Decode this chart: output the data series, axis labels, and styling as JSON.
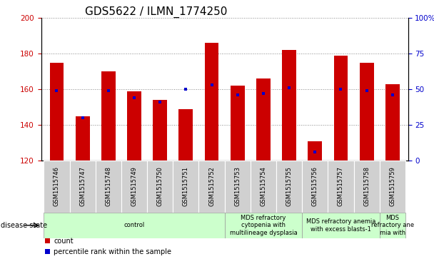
{
  "title": "GDS5622 / ILMN_1774250",
  "samples": [
    "GSM1515746",
    "GSM1515747",
    "GSM1515748",
    "GSM1515749",
    "GSM1515750",
    "GSM1515751",
    "GSM1515752",
    "GSM1515753",
    "GSM1515754",
    "GSM1515755",
    "GSM1515756",
    "GSM1515757",
    "GSM1515758",
    "GSM1515759"
  ],
  "counts": [
    175,
    145,
    170,
    159,
    154,
    149,
    186,
    162,
    166,
    182,
    131,
    179,
    175,
    163
  ],
  "percentile_ranks": [
    49,
    30,
    49,
    44,
    41,
    50,
    53,
    46,
    47,
    51,
    6,
    50,
    49,
    46
  ],
  "ymin": 120,
  "ymax": 200,
  "yticks_left": [
    120,
    140,
    160,
    180,
    200
  ],
  "yticks_right": [
    0,
    25,
    50,
    75,
    100
  ],
  "bar_color": "#cc0000",
  "dot_color": "#0000cc",
  "grid_color": "#888888",
  "group_defs": [
    {
      "gs": 0,
      "ge": 6,
      "label": "control"
    },
    {
      "gs": 7,
      "ge": 9,
      "label": "MDS refractory\ncytopenia with\nmultilineage dysplasia"
    },
    {
      "gs": 10,
      "ge": 12,
      "label": "MDS refractory anemia\nwith excess blasts-1"
    },
    {
      "gs": 13,
      "ge": 13,
      "label": "MDS\nrefractory ane\nmia with"
    }
  ],
  "legend_count": "count",
  "legend_percentile": "percentile rank within the sample",
  "title_fontsize": 11,
  "tick_fontsize": 7.5,
  "sample_fontsize": 6,
  "group_fontsize": 6,
  "legend_fontsize": 7
}
